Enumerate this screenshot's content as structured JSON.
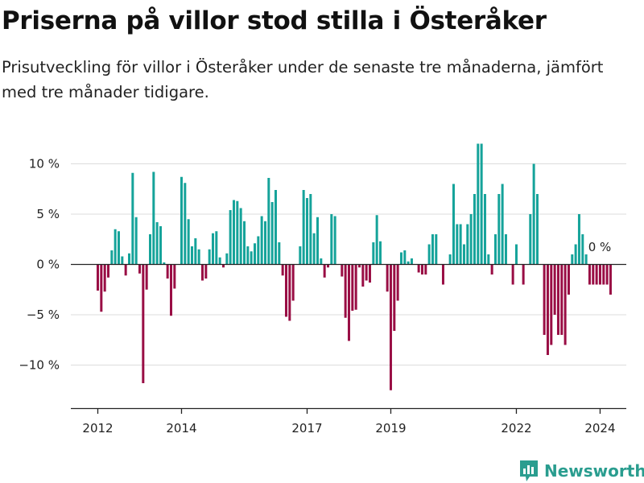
{
  "title": "Priserna på villor stod stilla i Österåker",
  "subtitle": "Prisutveckling för villor i Österåker under de senaste tre månaderna, jämfört med tre månader tidigare.",
  "brand": "Newsworthy",
  "colors": {
    "positive": "#15a39a",
    "negative": "#990d44",
    "grid": "#dddddd",
    "axis": "#222222"
  },
  "chart_data": {
    "type": "bar",
    "unit": "%",
    "ylim": [
      -14,
      12
    ],
    "yticks": [
      {
        "value": 10,
        "label": "10 %"
      },
      {
        "value": 5,
        "label": "5 %"
      },
      {
        "value": 0,
        "label": "0 %"
      },
      {
        "value": -5,
        "label": "−5 %"
      },
      {
        "value": -10,
        "label": "−10 %"
      }
    ],
    "xticks": [
      {
        "index": 0,
        "label": "2012"
      },
      {
        "index": 24,
        "label": "2014"
      },
      {
        "index": 60,
        "label": "2017"
      },
      {
        "index": 84,
        "label": "2019"
      },
      {
        "index": 120,
        "label": "2022"
      },
      {
        "index": 144,
        "label": "2024"
      }
    ],
    "last_label": "0 %",
    "values": [
      -2.6,
      -4.7,
      -2.7,
      -1.3,
      1.4,
      3.5,
      3.3,
      0.8,
      -1.1,
      1.1,
      9.1,
      4.7,
      -0.9,
      -11.8,
      -2.5,
      3.0,
      9.2,
      4.2,
      3.8,
      0.2,
      -1.4,
      -5.1,
      -2.4,
      0,
      8.7,
      8.1,
      4.5,
      1.8,
      2.6,
      1.5,
      -1.6,
      -1.4,
      1.5,
      3.1,
      3.3,
      0.7,
      -0.3,
      1.1,
      5.4,
      6.4,
      6.3,
      5.6,
      4.3,
      1.8,
      1.3,
      2.1,
      2.8,
      4.8,
      4.3,
      8.6,
      6.2,
      7.4,
      2.2,
      -1.1,
      -5.2,
      -5.6,
      -3.6,
      0,
      1.8,
      7.4,
      6.6,
      7.0,
      3.1,
      4.7,
      0.6,
      -1.3,
      -0.3,
      5.0,
      4.8,
      0,
      -1.2,
      -5.3,
      -7.6,
      -4.6,
      -4.5,
      -0.3,
      -2.2,
      -1.6,
      -1.8,
      2.2,
      4.9,
      2.3,
      0,
      -2.7,
      -12.5,
      -6.6,
      -3.6,
      1.2,
      1.4,
      0.3,
      0.6,
      0,
      -0.8,
      -1.0,
      -1.0,
      2.0,
      3.0,
      3.0,
      0,
      -2.0,
      0,
      1.0,
      8.0,
      4.0,
      4.0,
      2.0,
      4.0,
      5.0,
      7.0,
      12.0,
      12.0,
      7.0,
      1.0,
      -1.0,
      3.0,
      7.0,
      8.0,
      3.0,
      0,
      -2.0,
      2.0,
      0,
      -2.0,
      0,
      5.0,
      10.0,
      7.0,
      0,
      -7.0,
      -9.0,
      -8.0,
      -5.0,
      -7.0,
      -7.0,
      -8.0,
      -3.0,
      1.0,
      2.0,
      5.0,
      3.0,
      1.0,
      -2.0,
      -2.0,
      -2.0,
      -2.0,
      -2.0,
      -2.0,
      -3.0,
      0
    ]
  }
}
